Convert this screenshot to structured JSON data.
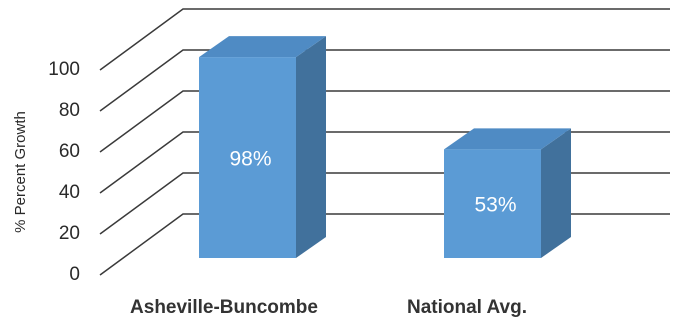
{
  "chart_data": {
    "type": "bar",
    "three_d": true,
    "categories": [
      "Asheville-Buncombe",
      "National Avg."
    ],
    "values": [
      98,
      53
    ],
    "data_labels": [
      "98%",
      "53%"
    ],
    "ylabel": "% Percent Growth",
    "xlabel": "",
    "title": "",
    "ylim": [
      0,
      100
    ],
    "yticks": [
      0,
      20,
      40,
      60,
      80,
      100
    ],
    "grid": true,
    "legend": "none",
    "colors": {
      "front": "#5b9bd5",
      "side": "#41719c",
      "top": "#4f8bc4",
      "grid": "#3a3a3a"
    }
  }
}
